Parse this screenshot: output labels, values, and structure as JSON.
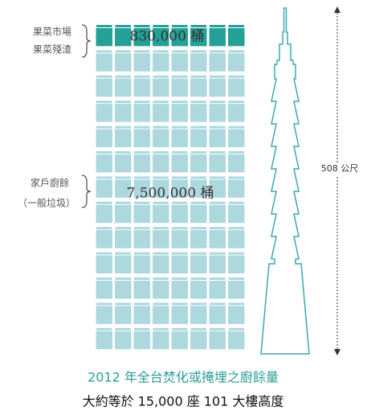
{
  "top_group": {
    "labels": [
      "果菜市場",
      "果菜殘渣"
    ],
    "amount": "830,000 桶"
  },
  "bottom_group": {
    "labels": [
      "家戶廚餘",
      "（一般垃圾）"
    ],
    "amount": "7,500,000 桶"
  },
  "height_label": "508 公尺",
  "caption": {
    "title": "2012 年全台焚化或掩埋之廚餘量",
    "subtitle": "大約等於 15,000 座 101 大樓高度"
  }
}
